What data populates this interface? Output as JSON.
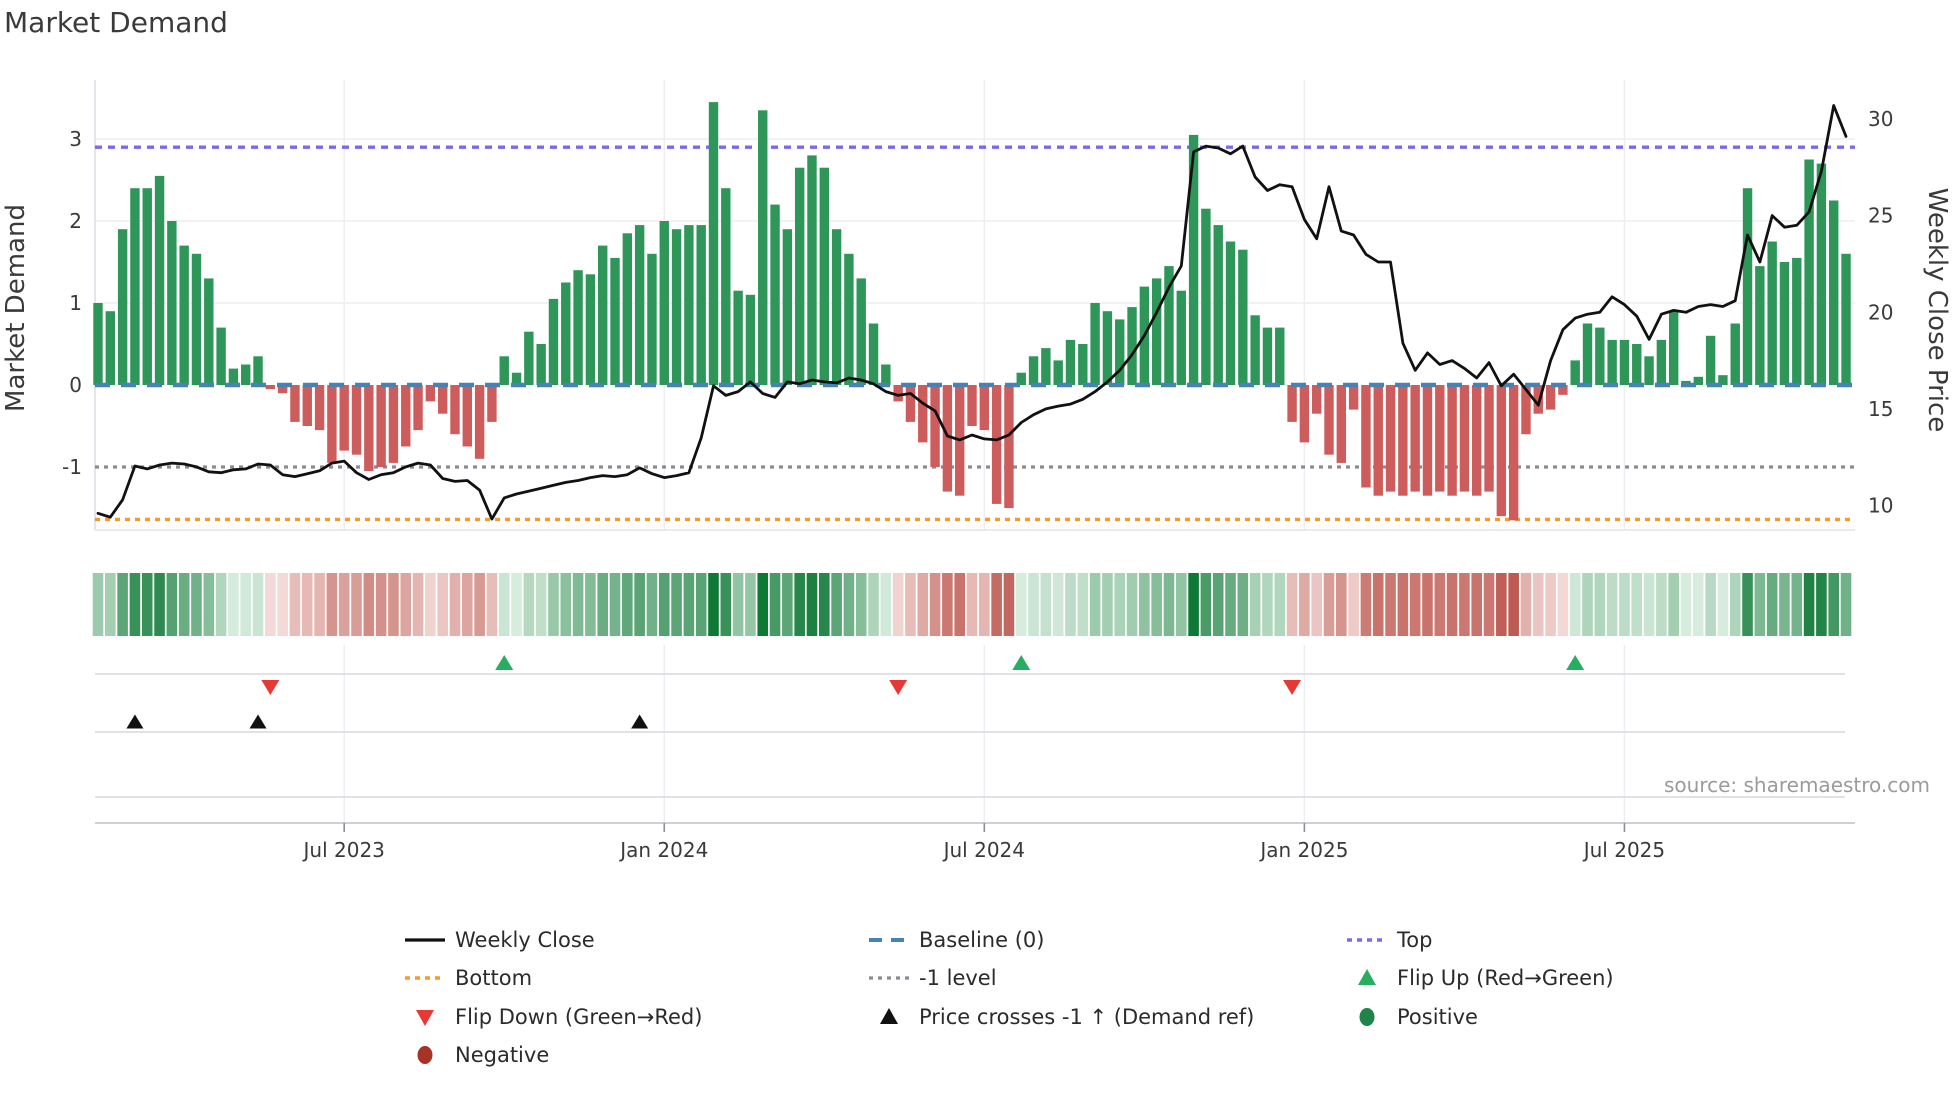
{
  "title": "Market Demand",
  "source": "source: sharemaestro.com",
  "left_axis": {
    "label": "Market Demand",
    "ticks": [
      {
        "value": 3,
        "label": "3"
      },
      {
        "value": 2,
        "label": "2"
      },
      {
        "value": 1,
        "label": "1"
      },
      {
        "value": 0,
        "label": "0"
      },
      {
        "value": -1,
        "label": "-1"
      }
    ]
  },
  "right_axis": {
    "label": "Weekly Close Price",
    "ticks": [
      {
        "value": 30,
        "label": "30"
      },
      {
        "value": 25,
        "label": "25"
      },
      {
        "value": 20,
        "label": "20"
      },
      {
        "value": 15,
        "label": "15"
      },
      {
        "value": 10,
        "label": "10"
      }
    ]
  },
  "x_axis": {
    "ticks": [
      {
        "week": 20,
        "label": "Jul 2023"
      },
      {
        "week": 46,
        "label": "Jan 2024"
      },
      {
        "week": 72,
        "label": "Jul 2024"
      },
      {
        "week": 98,
        "label": "Jan 2025"
      },
      {
        "week": 124,
        "label": "Jul 2025"
      }
    ]
  },
  "colors": {
    "bar_positive": "#2e9658",
    "bar_negative": "#cd5c5c",
    "price_line": "#111111",
    "baseline": "#4682b4",
    "top_line": "#7b68ee",
    "bottom_line": "#f39c2c",
    "minus1_line": "#8b8b94",
    "flip_up": "#27ae60",
    "flip_down": "#e53935",
    "price_cross": "#111111",
    "positive_dot": "#1e8449",
    "negative_dot": "#a93226",
    "grid": "#ededf2",
    "panel_line": "#d9d9de"
  },
  "legend": {
    "items": [
      {
        "key": "weekly_close",
        "label": "Weekly Close"
      },
      {
        "key": "baseline",
        "label": "Baseline (0)"
      },
      {
        "key": "top",
        "label": "Top"
      },
      {
        "key": "bottom",
        "label": "Bottom"
      },
      {
        "key": "minus1",
        "label": "-1 level"
      },
      {
        "key": "flip_up",
        "label": "Flip Up (Red→Green)"
      },
      {
        "key": "flip_down",
        "label": "Flip Down (Green→Red)"
      },
      {
        "key": "price_cross",
        "label": "Price crosses -1 ↑ (Demand ref)"
      },
      {
        "key": "positive",
        "label": "Positive"
      },
      {
        "key": "negative",
        "label": "Negative"
      }
    ]
  },
  "chart_data": {
    "type": "combo",
    "x": {
      "unit": "week",
      "count": 143,
      "tick_weeks": [
        20,
        46,
        72,
        98,
        124
      ],
      "tick_labels": [
        "Jul 2023",
        "Jan 2024",
        "Jul 2024",
        "Jan 2025",
        "Jul 2025"
      ]
    },
    "left_ylabel": "Market Demand",
    "right_ylabel": "Weekly Close Price",
    "left_ylim": [
      -2.0,
      3.72
    ],
    "right_ylim": [
      8.8,
      32.0
    ],
    "reference_lines": {
      "baseline": 0,
      "top": 2.9,
      "bottom": -1.64,
      "minus1": -1
    },
    "series": [
      {
        "name": "Market Demand",
        "type": "bar",
        "axis": "left",
        "values": [
          1.0,
          0.9,
          1.9,
          2.4,
          2.4,
          2.55,
          2.0,
          1.7,
          1.6,
          1.3,
          0.7,
          0.2,
          0.25,
          0.35,
          -0.05,
          -0.1,
          -0.45,
          -0.5,
          -0.55,
          -0.95,
          -0.8,
          -0.85,
          -1.05,
          -1.0,
          -0.95,
          -0.75,
          -0.55,
          -0.2,
          -0.35,
          -0.6,
          -0.75,
          -0.9,
          -0.45,
          0.35,
          0.15,
          0.65,
          0.5,
          1.05,
          1.25,
          1.4,
          1.35,
          1.7,
          1.55,
          1.85,
          1.95,
          1.6,
          2.0,
          1.9,
          1.95,
          1.95,
          3.45,
          2.4,
          1.15,
          1.1,
          3.35,
          2.2,
          1.9,
          2.65,
          2.8,
          2.65,
          1.9,
          1.6,
          1.3,
          0.75,
          0.25,
          -0.2,
          -0.45,
          -0.7,
          -1.0,
          -1.3,
          -1.35,
          -0.5,
          -0.55,
          -1.45,
          -1.5,
          0.15,
          0.35,
          0.45,
          0.3,
          0.55,
          0.5,
          1.0,
          0.9,
          0.8,
          0.95,
          1.2,
          1.3,
          1.45,
          1.15,
          3.05,
          2.15,
          1.95,
          1.75,
          1.65,
          0.85,
          0.7,
          0.7,
          -0.45,
          -0.7,
          -0.35,
          -0.85,
          -0.95,
          -0.3,
          -1.25,
          -1.35,
          -1.3,
          -1.35,
          -1.3,
          -1.35,
          -1.3,
          -1.35,
          -1.3,
          -1.35,
          -1.3,
          -1.6,
          -1.65,
          -0.6,
          -0.35,
          -0.3,
          -0.12,
          0.3,
          0.75,
          0.7,
          0.55,
          0.55,
          0.5,
          0.35,
          0.55,
          0.9,
          0.05,
          0.1,
          0.6,
          0.12,
          0.75,
          2.4,
          1.45,
          1.75,
          1.5,
          1.55,
          2.75,
          2.7,
          2.25,
          1.6
        ]
      },
      {
        "name": "Weekly Close",
        "type": "line",
        "axis": "right",
        "values": [
          9.6,
          9.4,
          10.3,
          12.05,
          11.9,
          12.1,
          12.2,
          12.15,
          12.0,
          11.75,
          11.7,
          11.85,
          11.9,
          12.15,
          12.1,
          11.6,
          11.5,
          11.65,
          11.8,
          12.2,
          12.3,
          11.7,
          11.35,
          11.6,
          11.7,
          12.0,
          12.2,
          12.1,
          11.4,
          11.25,
          11.3,
          10.8,
          9.3,
          10.4,
          10.6,
          10.75,
          10.9,
          11.05,
          11.2,
          11.3,
          11.45,
          11.55,
          11.5,
          11.6,
          11.95,
          11.65,
          11.45,
          11.55,
          11.7,
          13.5,
          16.2,
          15.7,
          15.9,
          16.4,
          15.8,
          15.6,
          16.4,
          16.3,
          16.5,
          16.4,
          16.35,
          16.6,
          16.5,
          16.3,
          15.9,
          15.7,
          15.8,
          15.3,
          14.9,
          13.6,
          13.4,
          13.65,
          13.45,
          13.4,
          13.65,
          14.3,
          14.7,
          15.0,
          15.15,
          15.25,
          15.5,
          15.9,
          16.4,
          17.0,
          17.8,
          18.8,
          20.0,
          21.3,
          22.4,
          28.3,
          28.6,
          28.5,
          28.2,
          28.6,
          27.0,
          26.3,
          26.6,
          26.5,
          24.8,
          23.8,
          26.5,
          24.2,
          24.0,
          23.0,
          22.6,
          22.6,
          18.4,
          17.0,
          17.9,
          17.3,
          17.5,
          17.1,
          16.6,
          17.4,
          16.2,
          16.8,
          16.0,
          15.2,
          17.5,
          19.1,
          19.7,
          19.9,
          20.0,
          20.8,
          20.4,
          19.8,
          18.6,
          19.9,
          20.1,
          20.0,
          20.3,
          20.4,
          20.3,
          20.6,
          24.0,
          22.6,
          25.0,
          24.4,
          24.5,
          25.2,
          27.3,
          30.7,
          29.1
        ]
      }
    ],
    "heatmap": {
      "note": "weekly strip, green intensity for positive demand, red intensity for negative demand"
    },
    "annotations": {
      "flip_up_weeks": [
        33,
        75,
        120
      ],
      "flip_down_weeks": [
        14,
        65,
        97
      ],
      "price_cross_weeks": [
        3,
        13,
        44
      ]
    }
  }
}
